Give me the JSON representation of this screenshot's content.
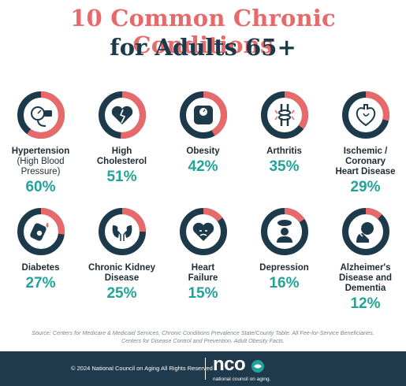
{
  "header": {
    "title_line1": "10 Common Chronic Conditions",
    "title_line2": "for Adults 65+"
  },
  "colors": {
    "ring_accent": "#e8696a",
    "ring_dark": "#1d3a4a",
    "percent": "#22a39a",
    "footer_bg": "#1e3a4c"
  },
  "chart_data": {
    "type": "pie",
    "series_unit": "%",
    "items": [
      {
        "lines": [
          "Hypertension",
          "(High Blood",
          "Pressure)"
        ],
        "value": 60,
        "display": "60%",
        "icon": "blood-pressure-icon"
      },
      {
        "lines": [
          "High",
          "Cholesterol"
        ],
        "value": 51,
        "display": "51%",
        "icon": "broken-heart-icon"
      },
      {
        "lines": [
          "Obesity"
        ],
        "value": 42,
        "display": "42%",
        "icon": "scale-icon"
      },
      {
        "lines": [
          "Arthritis"
        ],
        "value": 35,
        "display": "35%",
        "icon": "joint-icon"
      },
      {
        "lines": [
          "Ischemic /",
          "Coronary",
          "Heart Disease"
        ],
        "value": 29,
        "display": "29%",
        "icon": "heart-organ-icon"
      },
      {
        "lines": [
          "Diabetes"
        ],
        "value": 27,
        "display": "27%",
        "icon": "glucose-meter-icon"
      },
      {
        "lines": [
          "Chronic Kidney",
          "Disease"
        ],
        "value": 25,
        "display": "25%",
        "icon": "kidney-icon"
      },
      {
        "lines": [
          "Heart",
          "Failure"
        ],
        "value": 15,
        "display": "15%",
        "icon": "sad-heart-icon"
      },
      {
        "lines": [
          "Depression"
        ],
        "value": 16,
        "display": "16%",
        "icon": "person-cloud-icon"
      },
      {
        "lines": [
          "Alzheimer's",
          "Disease and",
          "Dementia"
        ],
        "value": 12,
        "display": "12%",
        "icon": "head-hand-icon"
      }
    ]
  },
  "source": {
    "line1": "Source: Centers for Medicare & Medicaid Services, Chronic Conditions Prevalence State/County Table: All Fee-for-Service Beneficiaries.",
    "line2": "Centers for Disease Control and Prevention. Adult Obesity Facts."
  },
  "footer": {
    "copyright": "© 2024 National Council on Aging All Rights Reserved",
    "logo": "nco",
    "logo_sub": "national council on aging."
  }
}
